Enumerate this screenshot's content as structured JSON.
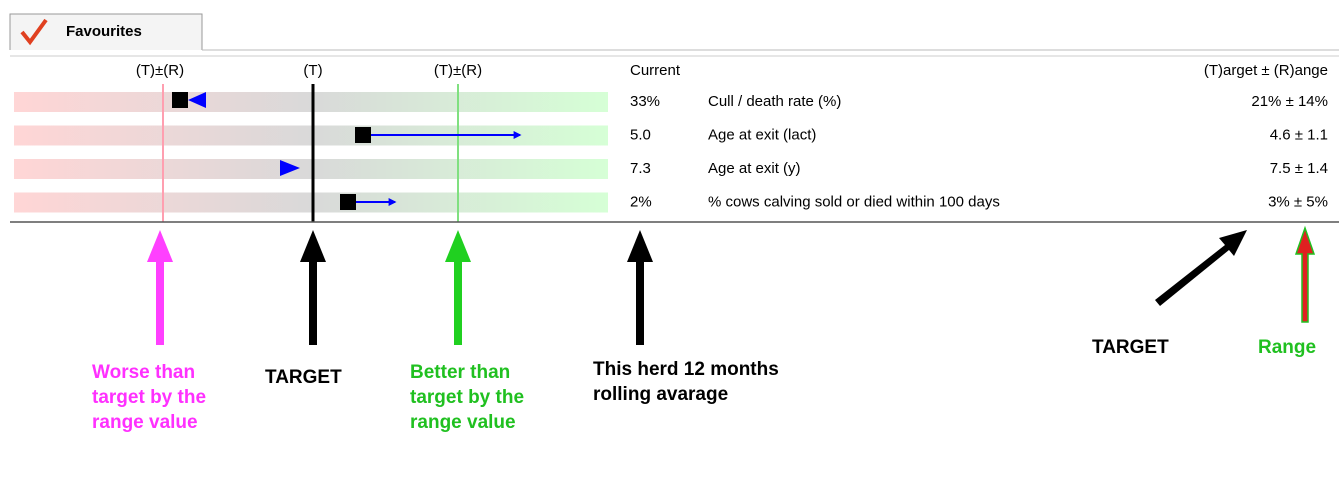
{
  "tab": {
    "label": "Favourites"
  },
  "header": {
    "worse_label": "(T)±(R)",
    "target_label": "(T)",
    "better_label": "(T)±(R)",
    "current_label": "Current",
    "target_range_label": "(T)arget ± (R)ange"
  },
  "rows": [
    {
      "current": "33%",
      "name": "Cull / death rate (%)",
      "target": "21% ± 14%"
    },
    {
      "current": "5.0",
      "name": "Age at exit (lact)",
      "target": "4.6 ± 1.1"
    },
    {
      "current": "7.3",
      "name": "Age at exit (y)",
      "target": "7.5 ± 1.4"
    },
    {
      "current": "2%",
      "name": "% cows calving sold or died within 100 days",
      "target": "3% ± 5%"
    }
  ],
  "annotations": {
    "worse": [
      "Worse than",
      "target by the",
      "range value"
    ],
    "target": [
      "TARGET"
    ],
    "better": [
      "Better than",
      "target by the",
      "range value"
    ],
    "current": [
      "This herd 12 months",
      "rolling avarage"
    ],
    "target_right": [
      "TARGET"
    ],
    "range": [
      "Range"
    ]
  }
}
